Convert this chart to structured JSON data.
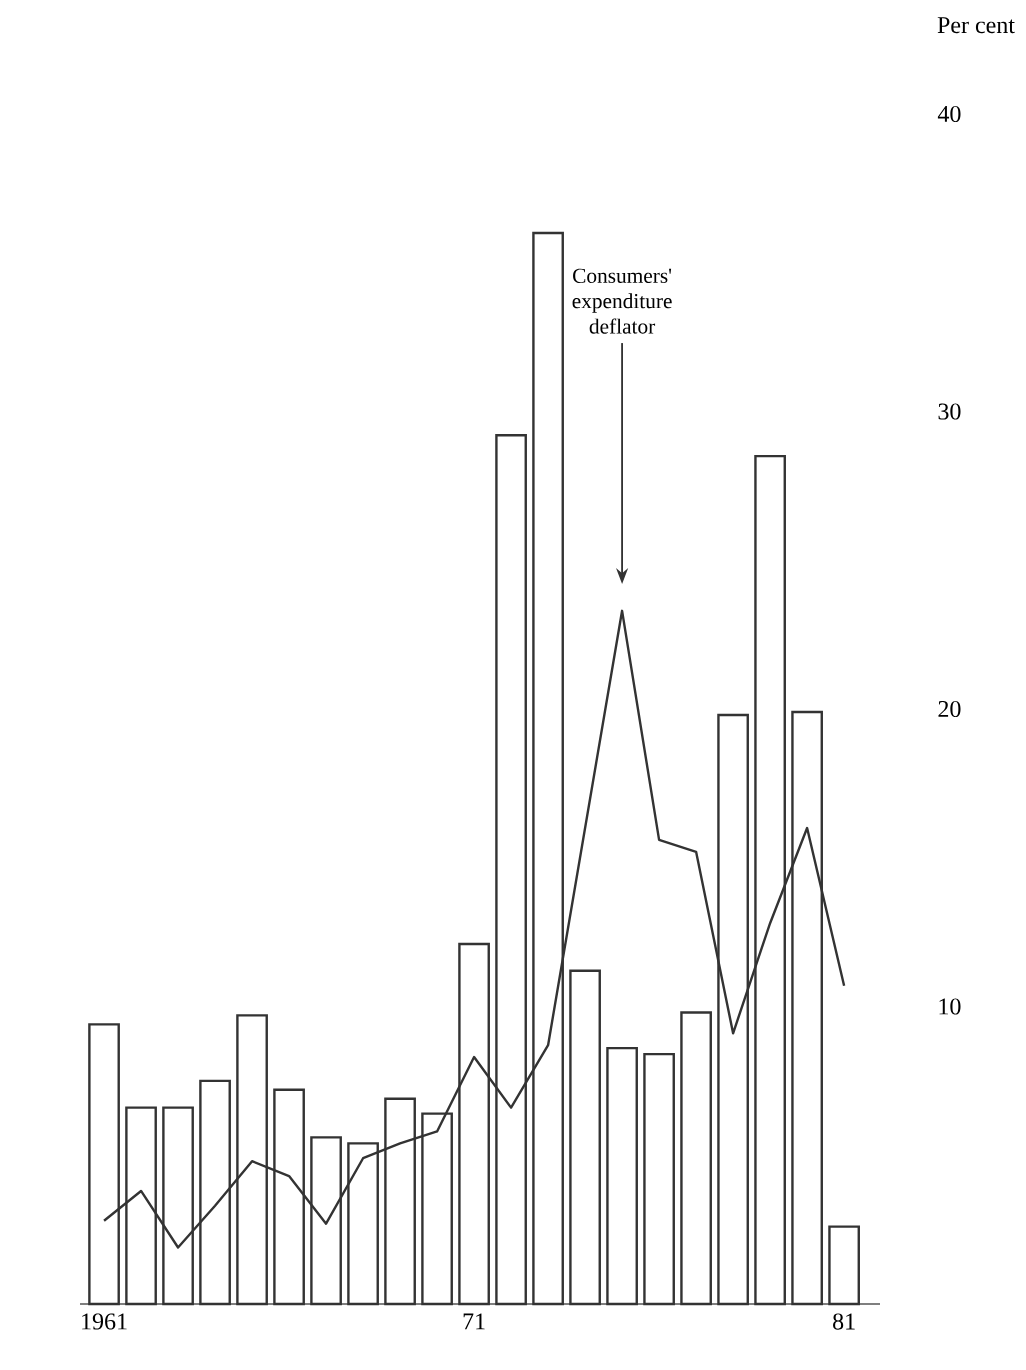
{
  "chart_data": {
    "type": "bar",
    "ylabel": "Per cent",
    "categories": [
      "1961",
      null,
      null,
      null,
      null,
      null,
      null,
      null,
      null,
      null,
      "71",
      null,
      null,
      null,
      null,
      null,
      null,
      null,
      null,
      null,
      "81"
    ],
    "series": [
      {
        "color": "#333333",
        "values": [
          9.4,
          6.6,
          6.6,
          7.5,
          9.7,
          7.2,
          5.6,
          5.4,
          6.9,
          6.4,
          12.1,
          29.2,
          36,
          11.2,
          8.6,
          8.4,
          9.8,
          19.8,
          28.5,
          19.9,
          2.6
        ]
      },
      {
        "type": "line",
        "color": "#333333",
        "values": [
          2.8,
          3.8,
          1.9,
          3.3,
          4.8,
          4.3,
          2.7,
          4.9,
          5.4,
          5.8,
          8.3,
          6.6,
          8.7,
          16.0,
          23.3,
          15.6,
          15.2,
          9.1,
          12.8,
          16.0,
          10.7
        ]
      }
    ],
    "ylim": [
      0,
      40
    ],
    "yticks": [
      10,
      20,
      30,
      40
    ],
    "annotations": [
      "Consumers' expenditure deflator"
    ]
  }
}
